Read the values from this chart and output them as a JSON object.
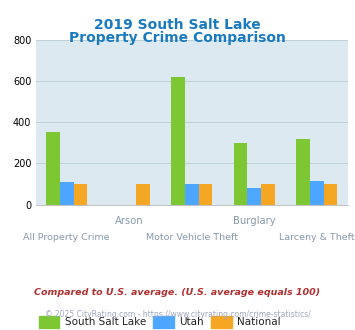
{
  "title_line1": "2019 South Salt Lake",
  "title_line2": "Property Crime Comparison",
  "title_color": "#1a7abf",
  "categories": [
    "All Property Crime",
    "Arson",
    "Motor Vehicle Theft",
    "Burglary",
    "Larceny & Theft"
  ],
  "top_labels": {
    "1": "Arson",
    "3": "Burglary"
  },
  "bottom_labels": {
    "0": "All Property Crime",
    "2": "Motor Vehicle Theft",
    "4": "Larceny & Theft"
  },
  "ssl_values": [
    350,
    0,
    620,
    298,
    318
  ],
  "utah_values": [
    110,
    0,
    100,
    82,
    115
  ],
  "national_values": [
    100,
    100,
    100,
    100,
    100
  ],
  "ssl_color": "#7dc832",
  "utah_color": "#4da6ff",
  "national_color": "#f5a623",
  "bg_color": "#dce9f0",
  "ylim": [
    0,
    800
  ],
  "yticks": [
    0,
    200,
    400,
    600,
    800
  ],
  "bar_width": 0.22,
  "legend_labels": [
    "South Salt Lake",
    "Utah",
    "National"
  ],
  "footnote1": "Compared to U.S. average. (U.S. average equals 100)",
  "footnote2": "© 2025 CityRating.com - https://www.cityrating.com/crime-statistics/",
  "footnote1_color": "#b03030",
  "footnote2_color": "#a0a8c0",
  "grid_color": "#b8ccd4"
}
